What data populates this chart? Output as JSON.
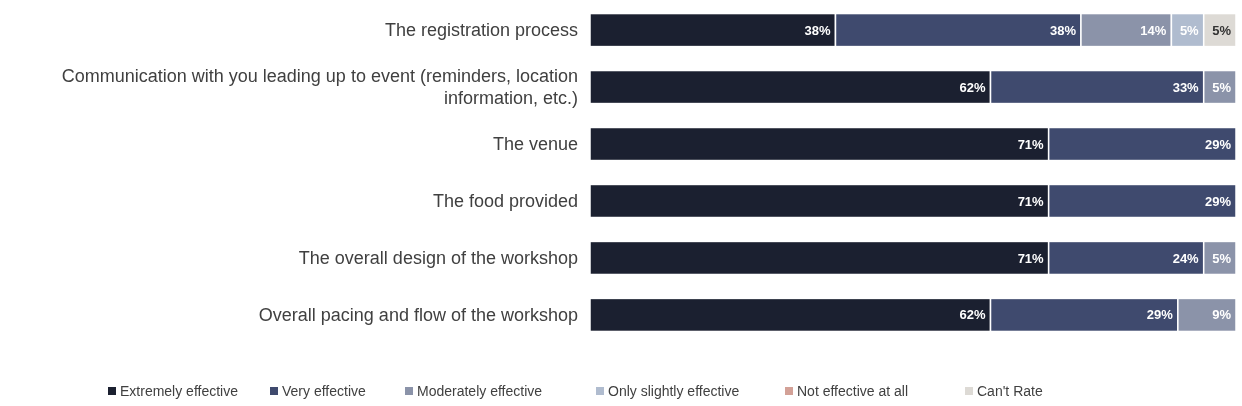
{
  "chart_data": {
    "type": "bar",
    "orientation": "horizontal",
    "stacked": true,
    "legend": "bottom",
    "categories": [
      "The registration process",
      "Communication with you leading up to event (reminders, location information, etc.)",
      "The venue",
      "The food provided",
      "The overall design of the workshop",
      "Overall pacing and flow of the workshop"
    ],
    "series": [
      {
        "name": "Extremely effective",
        "color": "#1b2030",
        "values": [
          38,
          62,
          71,
          71,
          71,
          62
        ],
        "value_labels": [
          "38%",
          "62%",
          "71%",
          "71%",
          "71%",
          "62%"
        ]
      },
      {
        "name": "Very effective",
        "color": "#3f4a6e",
        "values": [
          38,
          33,
          29,
          29,
          24,
          29
        ],
        "value_labels": [
          "38%",
          "33%",
          "29%",
          "29%",
          "24%",
          "29%"
        ]
      },
      {
        "name": "Moderately effective",
        "color": "#8b93a9",
        "values": [
          14,
          5,
          null,
          null,
          5,
          9
        ],
        "value_labels": [
          "14%",
          "5%",
          null,
          null,
          "5%",
          "9%"
        ]
      },
      {
        "name": "Only slightly effective",
        "color": "#b0bccf",
        "values": [
          5,
          null,
          null,
          null,
          null,
          null
        ],
        "value_labels": [
          "5%",
          null,
          null,
          null,
          null,
          null
        ]
      },
      {
        "name": "Not effective at all",
        "color": "#d3a197",
        "values": [
          null,
          null,
          null,
          null,
          null,
          null
        ]
      },
      {
        "name": "Can't Rate",
        "color": "#dddad5",
        "values": [
          5,
          null,
          null,
          null,
          null,
          null
        ],
        "value_labels": [
          "5%",
          null,
          null,
          null,
          null,
          null
        ]
      }
    ]
  }
}
